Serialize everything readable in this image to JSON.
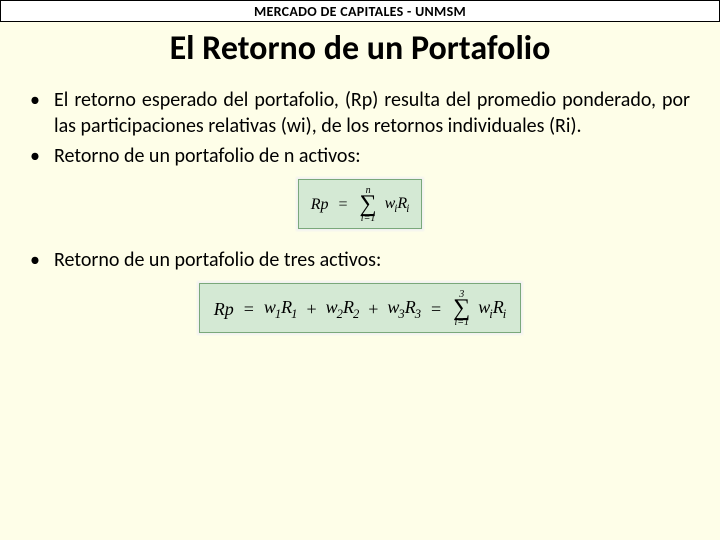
{
  "header": "MERCADO DE CAPITALES - UNMSM",
  "title": "El Retorno de un Portafolio",
  "bullets": {
    "b1": "El retorno esperado del portafolio, (Rp) resulta del promedio ponderado, por las participaciones relativas (wi), de los retornos individuales (Ri).",
    "b2": "Retorno de un portafolio de n activos:",
    "b3": "Retorno de un portafolio de tres activos:"
  },
  "formula1": {
    "lhs": "Rp",
    "upper": "n",
    "lower": "i=1",
    "term_w": "w",
    "term_wi": "i",
    "term_R": "R",
    "term_Ri": "i"
  },
  "formula2": {
    "lhs": "Rp",
    "t1w": "w",
    "t1wi": "1",
    "t1R": "R",
    "t1Ri": "1",
    "t2w": "w",
    "t2wi": "2",
    "t2R": "R",
    "t2Ri": "2",
    "t3w": "w",
    "t3wi": "3",
    "t3R": "R",
    "t3Ri": "3",
    "upper": "3",
    "lower": "i=1",
    "sw": "w",
    "swi": "i",
    "sR": "R",
    "sRi": "i"
  },
  "colors": {
    "page_bg": "#fefee8",
    "formula_bg": "#d4e9d4",
    "formula_border": "#7aa87a"
  }
}
